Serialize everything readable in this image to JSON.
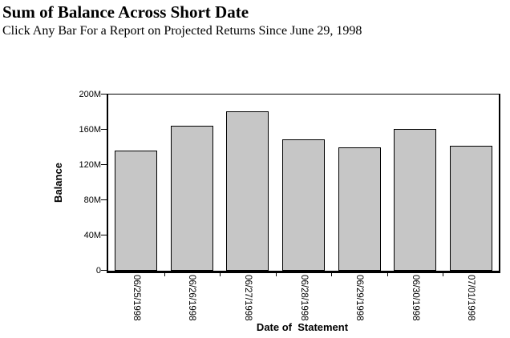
{
  "header": {
    "title": "Sum of Balance Across Short Date",
    "subtitle": "Click Any Bar For a Report on Projected Returns Since June 29, 1998"
  },
  "chart_data": {
    "type": "bar",
    "title": "Sum of Balance Across Short Date",
    "subtitle": "Click Any Bar For a Report on Projected Returns Since June 29, 1998",
    "categories": [
      "06/25/1998",
      "06/26/1998",
      "06/27/1998",
      "06/28/1998",
      "06/29/1998",
      "06/30/1998",
      "07/01/1998"
    ],
    "values_millions": [
      136,
      165,
      181,
      149,
      140,
      161,
      142
    ],
    "xlabel": "Date of  Statement",
    "ylabel": "Balance",
    "ylim_millions": [
      0,
      200
    ],
    "yticks": [
      {
        "value_m": 0,
        "label": "0"
      },
      {
        "value_m": 40,
        "label": "40M"
      },
      {
        "value_m": 80,
        "label": "80M"
      },
      {
        "value_m": 120,
        "label": "120M"
      },
      {
        "value_m": 160,
        "label": "160M"
      },
      {
        "value_m": 200,
        "label": "200M"
      }
    ],
    "grid": false,
    "legend": false,
    "x_labels_rotated_degrees": 90,
    "bars_clickable": true,
    "colors": {
      "bar_fill": "#c6c6c6",
      "bar_border": "#000000",
      "axis": "#000000",
      "text": "#000000",
      "background": "#ffffff"
    }
  }
}
